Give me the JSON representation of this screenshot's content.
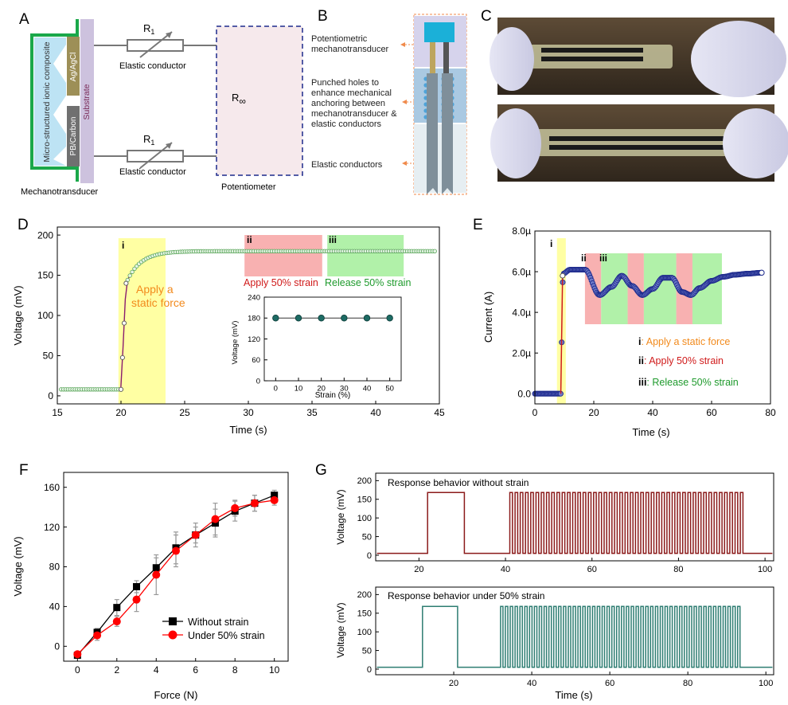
{
  "panels": {
    "A": {
      "letter": "A",
      "layer_composite": "Micro-structured ionic composite",
      "layer_agagcl": "Ag/AgCl",
      "layer_pbcarbon": "PB/Carbon",
      "layer_substrate": "Substrate",
      "resistor_top": "R",
      "resistor_top_sub": "1",
      "resistor_bottom": "R",
      "resistor_bottom_sub": "1",
      "conductor_top": "Elastic conductor",
      "conductor_bottom": "Elastic conductor",
      "r_inf": "R",
      "r_inf_sub": "∞",
      "label_mechanotransducer": "Mechanotransducer",
      "label_potentiometer": "Potentiometer"
    },
    "B": {
      "letter": "B",
      "label1_l1": "Potentiometric",
      "label1_l2": "mechanotransducer",
      "label2_l1": "Punched holes to",
      "label2_l2": "enhance mechanical",
      "label2_l3": "anchoring between",
      "label2_l4": "mechanotransducer &",
      "label2_l5": "elastic conductors",
      "label3": "Elastic conductors"
    },
    "C": {
      "letter": "C"
    },
    "D": {
      "letter": "D",
      "ylabel": "Voltage (mV)",
      "xlabel": "Time (s)",
      "region_i": "i",
      "region_ii": "ii",
      "region_iii": "iii",
      "ann_force_l1": "Apply a",
      "ann_force_l2": "static force",
      "ann_strain": "Apply 50% strain",
      "ann_release": "Release 50% strain",
      "inset_ylabel": "Voltage (mV)",
      "inset_xlabel": "Strain (%)"
    },
    "E": {
      "letter": "E",
      "ylabel": "Current (A)",
      "xlabel": "Time (s)",
      "region_i": "i",
      "region_ii": "ii",
      "region_iii": "iii",
      "leg_i_key": "i",
      "leg_i_text": ": Apply a static force",
      "leg_ii_key": "ii",
      "leg_ii_text": ": Apply 50% strain",
      "leg_iii_key": "iii",
      "leg_iii_text": ": Release 50% strain"
    },
    "F": {
      "letter": "F",
      "ylabel": "Voltage (mV)",
      "xlabel": "Force (N)",
      "legend_1": "Without strain",
      "legend_2": "Under 50% strain"
    },
    "G": {
      "letter": "G",
      "ylabel_top": "Voltage (mV)",
      "ylabel_bottom": "Voltage (mV)",
      "xlabel": "Time (s)",
      "title_top": "Response behavior without strain",
      "title_bottom": "Response behavior under 50% strain"
    }
  },
  "chart_data": [
    {
      "panel": "D",
      "type": "line",
      "xlim": [
        15,
        45
      ],
      "ylim": [
        -10,
        210
      ],
      "xticks": [
        15,
        20,
        25,
        30,
        35,
        40,
        45
      ],
      "yticks": [
        0,
        50,
        100,
        150,
        200
      ],
      "regions": [
        {
          "label": "i",
          "x": [
            19.8,
            23.5
          ],
          "color": "#ffff99"
        },
        {
          "label": "ii",
          "x": [
            29.7,
            35.8
          ],
          "color": "#f7a8a8"
        },
        {
          "label": "iii",
          "x": [
            36.2,
            42.2
          ],
          "color": "#a8f0a0"
        }
      ],
      "series": {
        "baseline": 8,
        "rise_start": 20.0,
        "rise_end": 20.4,
        "step_value": 140,
        "plateau": 180
      },
      "inset": {
        "type": "scatter",
        "x": [
          0,
          10,
          20,
          30,
          40,
          50
        ],
        "y": [
          180,
          180,
          180,
          180,
          180,
          180
        ],
        "xlim": [
          -5,
          55
        ],
        "ylim": [
          0,
          240
        ],
        "xticks": [
          0,
          10,
          20,
          30,
          40,
          50
        ],
        "yticks": [
          0,
          60,
          120,
          180,
          240
        ]
      }
    },
    {
      "panel": "E",
      "type": "line",
      "xlim": [
        0,
        80
      ],
      "ylim": [
        -5e-07,
        8e-06
      ],
      "xticks": [
        0,
        20,
        40,
        60,
        80
      ],
      "yticks": [
        0,
        2e-06,
        4e-06,
        6e-06,
        8e-06
      ],
      "ytick_labels": [
        "0.0",
        "2.0µ",
        "4.0µ",
        "6.0µ",
        "8.0µ"
      ],
      "regions": [
        {
          "label": "i",
          "x": [
            7.5,
            10.5
          ],
          "color": "#ffff99"
        },
        {
          "label": "ii",
          "x": [
            17,
            22.5
          ],
          "color": "#f7a8a8"
        },
        {
          "label": "iii",
          "x": [
            22.5,
            31.5
          ],
          "color": "#a8f0a0"
        },
        {
          "label": "",
          "x": [
            31.5,
            37
          ],
          "color": "#f7a8a8"
        },
        {
          "label": "",
          "x": [
            37,
            48
          ],
          "color": "#a8f0a0"
        },
        {
          "label": "",
          "x": [
            48,
            53.5
          ],
          "color": "#f7a8a8"
        },
        {
          "label": "",
          "x": [
            53.5,
            63.5
          ],
          "color": "#a8f0a0"
        }
      ],
      "keypoints": {
        "x": [
          0,
          8.8,
          9.5,
          12,
          17,
          22,
          26,
          29.5,
          33,
          36.5,
          40,
          43.5,
          46.5,
          50,
          53,
          56,
          60,
          64,
          68,
          72,
          77
        ],
        "y": [
          0,
          0,
          5.9e-06,
          6.1e-06,
          6.1e-06,
          4.85e-06,
          5.25e-06,
          5.8e-06,
          5.3e-06,
          4.85e-06,
          5.15e-06,
          5.7e-06,
          5.7e-06,
          5e-06,
          4.85e-06,
          5.2e-06,
          5.55e-06,
          5.75e-06,
          5.85e-06,
          5.9e-06,
          5.95e-06
        ]
      }
    },
    {
      "panel": "F",
      "type": "line",
      "xlim": [
        -0.7,
        10.7
      ],
      "ylim": [
        -15,
        175
      ],
      "xticks": [
        0,
        2,
        4,
        6,
        8,
        10
      ],
      "yticks": [
        0,
        40,
        80,
        120,
        160
      ],
      "x": [
        0,
        1,
        2,
        3,
        4,
        5,
        6,
        7,
        8,
        9,
        10
      ],
      "series": [
        {
          "name": "Without strain",
          "values": [
            -9,
            14,
            39,
            60,
            79,
            99,
            112,
            124,
            136,
            144,
            152
          ],
          "errors": [
            2,
            4,
            8,
            6,
            10,
            16,
            8,
            14,
            10,
            8,
            5
          ],
          "color": "#000000",
          "marker": "square"
        },
        {
          "name": "Under 50% strain",
          "values": [
            -8,
            11,
            25,
            47,
            72,
            96,
            112,
            128,
            139,
            144,
            147
          ],
          "errors": [
            2,
            5,
            5,
            12,
            20,
            16,
            12,
            16,
            8,
            8,
            5
          ],
          "color": "#ff0000",
          "marker": "circle"
        }
      ]
    },
    {
      "panel": "G-top",
      "type": "line",
      "xlim": [
        10,
        102
      ],
      "ylim": [
        -15,
        220
      ],
      "xticks": [
        20,
        40,
        60,
        80,
        100
      ],
      "yticks": [
        0,
        50,
        100,
        150,
        200
      ],
      "baseline": 5,
      "step": {
        "start": 22,
        "end": 30.5,
        "value": 168
      },
      "pulses": {
        "start": 41,
        "end": 95.5,
        "count": 45,
        "value": 168
      },
      "color": "#8b1a1a"
    },
    {
      "panel": "G-bottom",
      "type": "line",
      "xlim": [
        0,
        102
      ],
      "ylim": [
        -15,
        220
      ],
      "xticks": [
        20,
        40,
        60,
        80,
        100
      ],
      "yticks": [
        0,
        50,
        100,
        150,
        200
      ],
      "baseline": 5,
      "step": {
        "start": 12,
        "end": 21,
        "value": 168
      },
      "pulses": {
        "start": 32,
        "end": 94,
        "count": 50,
        "value": 168
      },
      "color": "#2e7d72"
    }
  ]
}
